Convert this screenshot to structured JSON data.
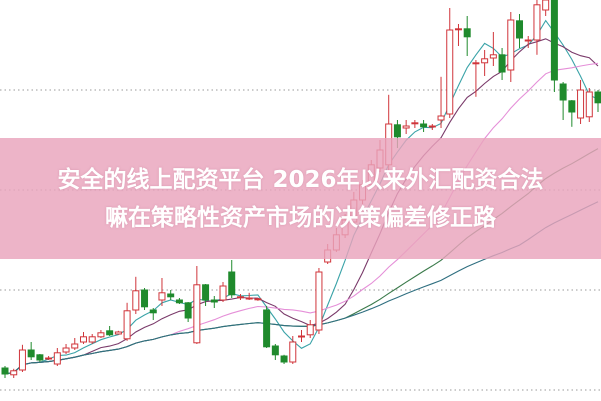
{
  "banner": {
    "line1": "安全的线上配资平台 2026年以来外汇配资合法",
    "line2": "嘛在策略性资产市场的决策偏差修正路"
  },
  "colors": {
    "up": "#d0343a",
    "down": "#1f8a2c",
    "banner": "#e9a3bc",
    "grid": "#9a9a9a",
    "ma": [
      "#3aa3a8",
      "#7a3a6a",
      "#e58fd8",
      "#3a7a4a",
      "#2f6f80"
    ]
  },
  "chart_data": {
    "type": "candlestick",
    "title": "",
    "xlabel": "",
    "ylabel": "",
    "ylim": [
      0,
      100
    ],
    "grid": "horizontal dotted",
    "gridlines": [
      77.5,
      52.5,
      27.5,
      2.5
    ],
    "moving_averages": [
      5,
      10,
      20,
      40,
      60
    ],
    "ohlc": [
      [
        8,
        6.5,
        8.5,
        5.5
      ],
      [
        6.3,
        7.3,
        7.8,
        5.5
      ],
      [
        7.5,
        12.5,
        13.8,
        7
      ],
      [
        12.5,
        10.8,
        14.5,
        10
      ],
      [
        11.3,
        10,
        11.5,
        9.5
      ],
      [
        10.5,
        10.5,
        11,
        10
      ],
      [
        9,
        11.8,
        13,
        8.5
      ],
      [
        12,
        13,
        14,
        11.5
      ],
      [
        13,
        14,
        15.5,
        12.5
      ],
      [
        14.5,
        15.8,
        17,
        14
      ],
      [
        14.5,
        15.8,
        16.5,
        14
      ],
      [
        15.8,
        16.8,
        17.5,
        15.5
      ],
      [
        17.3,
        16.3,
        18.5,
        16
      ],
      [
        16.5,
        17,
        17.3,
        16.5
      ],
      [
        15.3,
        22.3,
        24.3,
        14.8
      ],
      [
        22.5,
        27.3,
        30.8,
        21.5
      ],
      [
        27.5,
        23.3,
        28,
        22.5
      ],
      [
        22.5,
        21.8,
        23,
        20
      ],
      [
        25,
        26.8,
        30.5,
        23.5
      ],
      [
        26.5,
        25.8,
        27.5,
        25
      ],
      [
        25,
        24.3,
        25.5,
        24
      ],
      [
        24.3,
        20.5,
        24.5,
        19.5
      ],
      [
        14.3,
        28.8,
        33.5,
        14
      ],
      [
        28.8,
        25,
        29,
        23.5
      ],
      [
        25,
        24.5,
        26,
        23
      ],
      [
        25,
        28.5,
        29.5,
        24.5
      ],
      [
        32,
        26.3,
        35,
        25.5
      ],
      [
        25.8,
        25.8,
        26.5,
        25
      ],
      [
        25.5,
        25.5,
        26.8,
        25
      ],
      [
        25.3,
        25.3,
        25.5,
        24.8
      ],
      [
        22.5,
        13.3,
        23.5,
        13
      ],
      [
        13.5,
        11.3,
        14,
        10
      ],
      [
        11,
        9.5,
        11.3,
        9
      ],
      [
        9.5,
        14.5,
        16,
        9
      ],
      [
        16,
        16,
        17.5,
        14.5
      ],
      [
        16.3,
        18.8,
        20,
        15.5
      ],
      [
        17.5,
        32,
        33,
        16.5
      ],
      [
        34.5,
        37.5,
        39,
        34
      ],
      [
        37.5,
        41.3,
        43,
        37
      ],
      [
        41.3,
        45,
        46.5,
        40.5
      ],
      [
        44.5,
        50,
        52,
        44
      ],
      [
        50,
        53.8,
        55,
        49
      ],
      [
        53.8,
        58.8,
        60,
        53
      ],
      [
        58,
        62.5,
        65,
        57
      ],
      [
        58.8,
        69,
        76.3,
        57
      ],
      [
        68.8,
        65.8,
        70,
        63
      ],
      [
        68,
        68.5,
        70,
        66.5
      ],
      [
        69.3,
        69.3,
        70,
        68
      ],
      [
        69,
        68.3,
        70,
        67
      ],
      [
        68.5,
        68.5,
        69,
        67.5
      ],
      [
        70,
        71,
        80.8,
        68
      ],
      [
        71.5,
        92.5,
        98,
        70.5
      ],
      [
        92.8,
        92.8,
        94,
        88.5
      ],
      [
        92.8,
        90.8,
        96,
        86
      ],
      [
        84.3,
        84.3,
        85,
        75.8
      ],
      [
        84.3,
        85.3,
        87.5,
        81
      ],
      [
        85.5,
        86.3,
        92,
        83.5
      ],
      [
        86.3,
        82,
        88,
        80
      ],
      [
        82.5,
        95,
        97,
        79.5
      ],
      [
        94.8,
        90.5,
        96.5,
        88
      ],
      [
        90,
        90,
        91,
        88
      ],
      [
        90,
        98.8,
        100,
        86.3
      ],
      [
        97.5,
        100,
        100,
        96
      ],
      [
        100,
        80,
        100,
        77
      ],
      [
        79,
        75,
        79.5,
        70
      ],
      [
        74.8,
        72,
        75,
        68.3
      ],
      [
        70.5,
        77.5,
        80,
        69
      ],
      [
        70.8,
        77,
        78,
        69.5
      ],
      [
        77,
        74.3,
        77.5,
        72
      ]
    ]
  }
}
